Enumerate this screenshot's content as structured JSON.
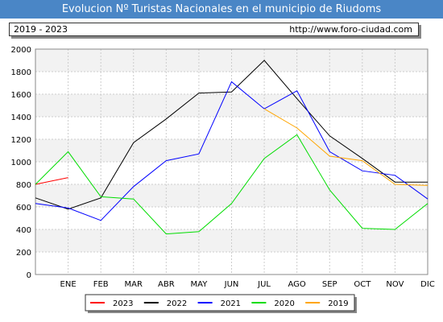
{
  "header": {
    "title": "Evolucion Nº Turistas Nacionales en el municipio de Riudoms",
    "years": "2019 - 2023",
    "url": "http://www.foro-ciudad.com"
  },
  "colors": {
    "title_bg": "#4a86c6",
    "band": "#f2f2f2",
    "grid": "#cccccc"
  },
  "chart_data": {
    "type": "line",
    "x": [
      "ENE",
      "FEB",
      "MAR",
      "ABR",
      "MAY",
      "JUN",
      "JUL",
      "AGO",
      "SEP",
      "OCT",
      "NOV",
      "DIC"
    ],
    "y_ticks": [
      0,
      200,
      400,
      600,
      800,
      1000,
      1200,
      1400,
      1600,
      1800,
      2000
    ],
    "ylim": [
      0,
      2000
    ],
    "grid": true,
    "legend_position": "bottom",
    "series": [
      {
        "name": "2023",
        "color": "#ff0000",
        "points": [
          [
            "DIC*",
            800
          ],
          [
            "ENE",
            860
          ]
        ]
      },
      {
        "name": "2022",
        "color": "#000000",
        "points": [
          [
            "DIC*",
            680
          ],
          [
            "ENE",
            580
          ],
          [
            "FEB",
            680
          ],
          [
            "MAR",
            1170
          ],
          [
            "ABR",
            1380
          ],
          [
            "MAY",
            1610
          ],
          [
            "JUN",
            1620
          ],
          [
            "JUL",
            1900
          ],
          [
            "AGO",
            1560
          ],
          [
            "SEP",
            1230
          ],
          [
            "OCT",
            1030
          ],
          [
            "NOV",
            820
          ],
          [
            "DIC",
            820
          ]
        ]
      },
      {
        "name": "2021",
        "color": "#0000ff",
        "points": [
          [
            "DIC*",
            630
          ],
          [
            "ENE",
            590
          ],
          [
            "FEB",
            480
          ],
          [
            "MAR",
            780
          ],
          [
            "ABR",
            1010
          ],
          [
            "MAY",
            1070
          ],
          [
            "JUN",
            1710
          ],
          [
            "JUL",
            1470
          ],
          [
            "AGO",
            1630
          ],
          [
            "SEP",
            1090
          ],
          [
            "OCT",
            920
          ],
          [
            "NOV",
            880
          ],
          [
            "DIC",
            670
          ]
        ]
      },
      {
        "name": "2020",
        "color": "#00dd00",
        "points": [
          [
            "DIC*",
            800
          ],
          [
            "ENE",
            1090
          ],
          [
            "FEB",
            690
          ],
          [
            "MAR",
            670
          ],
          [
            "ABR",
            360
          ],
          [
            "MAY",
            380
          ],
          [
            "JUN",
            630
          ],
          [
            "JUL",
            1030
          ],
          [
            "AGO",
            1240
          ],
          [
            "SEP",
            750
          ],
          [
            "OCT",
            410
          ],
          [
            "NOV",
            400
          ],
          [
            "DIC",
            630
          ]
        ]
      },
      {
        "name": "2019",
        "color": "#ffa500",
        "points": [
          [
            "JUL",
            1470
          ],
          [
            "AGO",
            1300
          ],
          [
            "SEP",
            1050
          ],
          [
            "OCT",
            1010
          ],
          [
            "NOV",
            800
          ],
          [
            "DIC",
            790
          ]
        ]
      }
    ]
  }
}
